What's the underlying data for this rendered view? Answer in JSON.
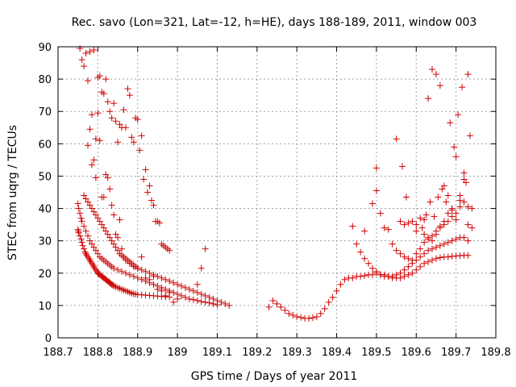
{
  "chart_data": {
    "type": "scatter",
    "title": "Rec. savo (Lon=321, Lat=-12, h=HE), days 188-189, 2011, window 003",
    "xlabel": "GPS time / Days of year 2011",
    "ylabel": "STEC from uqrg / TECUs",
    "xlim": [
      188.7,
      189.8
    ],
    "ylim": [
      0,
      90
    ],
    "x_ticks": [
      "188.7",
      "188.8",
      "188.9",
      "189",
      "189.1",
      "189.2",
      "189.3",
      "189.4",
      "189.5",
      "189.6",
      "189.7",
      "189.8"
    ],
    "y_ticks": [
      "0",
      "10",
      "20",
      "30",
      "40",
      "50",
      "60",
      "70",
      "80",
      "90"
    ],
    "grid": true,
    "marker": "+",
    "color": "#d00000",
    "series": [
      {
        "x": [
          188.75,
          188.751,
          188.752,
          188.755,
          188.758,
          188.76,
          188.762,
          188.765,
          188.768,
          188.77,
          188.772,
          188.775,
          188.778,
          188.78,
          188.782,
          188.785,
          188.788,
          188.79,
          188.792,
          188.795,
          188.798,
          188.8,
          188.802,
          188.805,
          188.808,
          188.81,
          188.812,
          188.815,
          188.818,
          188.82,
          188.822,
          188.825,
          188.828,
          188.83,
          188.832,
          188.835,
          188.838,
          188.84,
          188.845,
          188.85,
          188.855,
          188.86,
          188.865,
          188.87,
          188.875,
          188.88,
          188.885,
          188.89,
          188.895,
          188.9,
          188.91,
          188.92,
          188.93,
          188.94,
          188.95,
          188.96,
          188.97,
          188.98
        ],
        "y": [
          33.5,
          33,
          32.5,
          31.5,
          30.5,
          29.5,
          28.5,
          27.5,
          26.5,
          26,
          25.5,
          25,
          24.5,
          24,
          23.5,
          23,
          22.5,
          22,
          21.5,
          21,
          20.5,
          20,
          19.8,
          19.5,
          19.3,
          19,
          18.8,
          18.5,
          18.3,
          18,
          17.8,
          17.5,
          17.3,
          17,
          16.8,
          16.5,
          16.3,
          16,
          15.8,
          15.5,
          15.3,
          15,
          14.8,
          14.5,
          14.3,
          14,
          13.8,
          13.6,
          13.5,
          13.4,
          13.3,
          13.2,
          13.1,
          13,
          12.9,
          12.8,
          12.7,
          12.6
        ]
      },
      {
        "x": [
          188.75,
          188.752,
          188.755,
          188.758,
          188.76,
          188.765,
          188.77,
          188.775,
          188.78,
          188.785,
          188.79,
          188.795,
          188.8,
          188.805,
          188.81,
          188.815,
          188.82,
          188.825,
          188.83,
          188.835,
          188.84,
          188.85,
          188.86,
          188.87,
          188.88,
          188.89,
          188.9,
          188.91,
          188.92,
          188.93,
          188.94,
          188.95,
          188.96,
          188.97,
          188.98,
          188.99,
          189.0,
          189.01,
          189.02,
          189.03,
          189.04,
          189.05,
          189.06,
          189.07,
          189.08,
          189.09,
          189.1
        ],
        "y": [
          41.5,
          40,
          38.5,
          37,
          36,
          34.5,
          33,
          31.5,
          30,
          29,
          28,
          27,
          26,
          25,
          24.5,
          24,
          23.5,
          23,
          22.5,
          22,
          21.5,
          21,
          20.5,
          20,
          19.5,
          19,
          18.5,
          18,
          17.5,
          17,
          16.5,
          16,
          15.5,
          15,
          14.5,
          14,
          13.5,
          13,
          12.5,
          12,
          11.8,
          11.5,
          11.2,
          11,
          10.8,
          10.5,
          10.2
        ]
      },
      {
        "x": [
          188.765,
          188.77,
          188.775,
          188.78,
          188.785,
          188.79,
          188.795,
          188.8,
          188.805,
          188.81,
          188.815,
          188.82,
          188.825,
          188.83,
          188.835,
          188.84,
          188.845,
          188.85,
          188.855,
          188.86,
          188.865,
          188.87,
          188.875,
          188.88,
          188.885,
          188.89,
          188.895,
          188.9,
          188.91,
          188.92,
          188.93,
          188.94,
          188.95,
          188.96,
          188.97,
          188.98,
          188.99,
          189.0,
          189.01,
          189.02,
          189.03,
          189.04,
          189.05,
          189.06,
          189.07,
          189.08,
          189.09,
          189.1,
          189.11,
          189.12,
          189.13
        ],
        "y": [
          44,
          43,
          42,
          41,
          40,
          39,
          38,
          37,
          36,
          35,
          34,
          33,
          32,
          31,
          30,
          29,
          28,
          27,
          26,
          25.5,
          25,
          24.5,
          24,
          23.5,
          23,
          22.5,
          22,
          21.5,
          21,
          20.5,
          20,
          19.5,
          19,
          18.5,
          18,
          17.5,
          17,
          16.5,
          16,
          15.5,
          15,
          14.5,
          14,
          13.5,
          13,
          12.5,
          12,
          11.5,
          11,
          10.5,
          10
        ]
      },
      {
        "x": [
          188.755,
          188.76,
          188.765,
          188.77,
          188.775,
          188.78,
          188.785,
          188.79,
          188.795,
          188.8,
          188.805,
          188.81,
          188.815,
          188.82,
          188.825,
          188.83,
          188.835,
          188.84,
          188.845,
          188.85,
          188.855,
          188.86,
          188.865,
          188.87,
          188.875,
          188.88,
          188.885,
          188.89,
          188.895,
          188.9,
          188.905,
          188.91,
          188.915,
          188.92,
          188.925,
          188.93,
          188.935,
          188.94,
          188.945,
          188.95,
          188.955,
          188.96,
          188.965,
          188.97,
          188.975,
          188.98
        ],
        "y": [
          89.5,
          86,
          84,
          88,
          79.5,
          88.5,
          69,
          89,
          61.5,
          80.5,
          81,
          76,
          75.5,
          80,
          73,
          70,
          68,
          72.5,
          67,
          60.5,
          66,
          65,
          70.5,
          65,
          77,
          75,
          62,
          60.5,
          68,
          67.5,
          58,
          62.5,
          49,
          52,
          45,
          47,
          42.5,
          41,
          36,
          36,
          35.5,
          29,
          28.5,
          28,
          27.5,
          27
        ]
      },
      {
        "x": [
          188.775,
          188.78,
          188.785,
          188.79,
          188.795,
          188.8,
          188.805,
          188.81,
          188.815,
          188.82,
          188.825,
          188.83,
          188.835,
          188.84,
          188.845,
          188.85,
          188.855,
          188.86,
          188.865,
          188.87,
          188.88,
          188.89,
          188.9,
          188.91,
          188.92,
          188.93,
          188.94,
          188.95,
          188.96,
          188.97,
          188.98,
          188.99,
          189.0,
          189.05,
          189.06,
          189.07
        ],
        "y": [
          59.5,
          64.5,
          53.5,
          55,
          49.5,
          69.5,
          61,
          43.5,
          43.5,
          50.5,
          49.5,
          46,
          41,
          38,
          32,
          31,
          36.5,
          27.5,
          25,
          24,
          23,
          22,
          21.5,
          25,
          18.5,
          18,
          19,
          15,
          14.5,
          13,
          14,
          11,
          12,
          16.5,
          21.5,
          27.5
        ]
      },
      {
        "x": [
          189.23,
          189.24,
          189.25,
          189.26,
          189.27,
          189.28,
          189.29,
          189.3,
          189.31,
          189.32,
          189.33,
          189.34,
          189.35,
          189.36,
          189.37,
          189.38,
          189.39,
          189.4,
          189.41,
          189.42,
          189.43,
          189.44,
          189.45,
          189.46,
          189.47,
          189.48,
          189.49,
          189.5,
          189.51,
          189.52,
          189.53,
          189.54,
          189.55,
          189.56,
          189.57,
          189.58,
          189.59,
          189.6,
          189.61,
          189.62,
          189.63,
          189.64,
          189.65,
          189.66,
          189.67,
          189.68,
          189.69,
          189.7,
          189.71,
          189.72,
          189.73
        ],
        "y": [
          9.5,
          11.5,
          10.5,
          9.5,
          8.5,
          7.5,
          7,
          6.5,
          6.3,
          6,
          6,
          6.2,
          6.5,
          7.5,
          9,
          11,
          12.5,
          14.5,
          16.5,
          18,
          18.5,
          18.5,
          19,
          19,
          19.2,
          19.5,
          19.5,
          20,
          19.5,
          19.5,
          19,
          18.5,
          18.5,
          18.5,
          19,
          19.5,
          20,
          21,
          22,
          23,
          23.5,
          24,
          24.5,
          24.8,
          25,
          25,
          25.2,
          25.3,
          25.4,
          25.5,
          25.5
        ]
      },
      {
        "x": [
          189.44,
          189.45,
          189.46,
          189.47,
          189.48,
          189.49,
          189.5,
          189.51,
          189.52,
          189.53,
          189.54,
          189.55,
          189.56,
          189.57,
          189.58,
          189.59,
          189.6,
          189.61,
          189.62,
          189.63,
          189.64,
          189.65,
          189.66,
          189.67,
          189.68,
          189.69,
          189.7,
          189.71,
          189.72,
          189.73
        ],
        "y": [
          34.5,
          29,
          26.5,
          24.5,
          23,
          21.5,
          20.5,
          19.5,
          19,
          19,
          19,
          19.5,
          20,
          21,
          22,
          23,
          24,
          25,
          26,
          27,
          27.5,
          28,
          28.5,
          29,
          29.5,
          30,
          30.5,
          31,
          31,
          30
        ]
      },
      {
        "x": [
          189.47,
          189.49,
          189.5,
          189.51,
          189.52,
          189.53,
          189.54,
          189.55,
          189.56,
          189.57,
          189.58,
          189.59,
          189.6,
          189.61,
          189.62,
          189.63,
          189.64,
          189.65,
          189.66,
          189.67,
          189.68,
          189.69,
          189.7,
          189.71,
          189.72,
          189.73,
          189.74
        ],
        "y": [
          33,
          41.5,
          45.5,
          38.5,
          34,
          33.5,
          29,
          27,
          26,
          25,
          24.5,
          24,
          26,
          27.5,
          29.5,
          30.5,
          31.5,
          33,
          34.5,
          35,
          36,
          37.5,
          38.5,
          40.5,
          42,
          40.5,
          40
        ]
      },
      {
        "x": [
          189.5,
          189.55,
          189.565,
          189.575,
          189.59,
          189.6,
          189.61,
          189.615,
          189.62,
          189.625,
          189.63,
          189.635,
          189.64,
          189.645,
          189.65,
          189.655,
          189.66,
          189.665,
          189.67,
          189.675,
          189.68,
          189.685,
          189.69,
          189.695,
          189.7,
          189.705,
          189.71,
          189.715,
          189.72,
          189.725,
          189.73,
          189.735
        ],
        "y": [
          52.5,
          61.5,
          53,
          43.5,
          36,
          35,
          37,
          34,
          36.5,
          38,
          74,
          42,
          83,
          37.5,
          81.5,
          43.5,
          78,
          46,
          47,
          42,
          44,
          66.5,
          39.5,
          59,
          56,
          69,
          44,
          77.5,
          49,
          48,
          81.5,
          62.5
        ]
      },
      {
        "x": [
          189.56,
          189.57,
          189.58,
          189.6,
          189.62,
          189.63,
          189.64,
          189.65,
          189.66,
          189.67,
          189.68,
          189.69,
          189.7,
          189.71,
          189.72,
          189.73,
          189.74
        ],
        "y": [
          36,
          35,
          35.5,
          33,
          32,
          31,
          30,
          32,
          34,
          36,
          38.5,
          40,
          36.5,
          42.5,
          51,
          35,
          34
        ]
      }
    ]
  }
}
